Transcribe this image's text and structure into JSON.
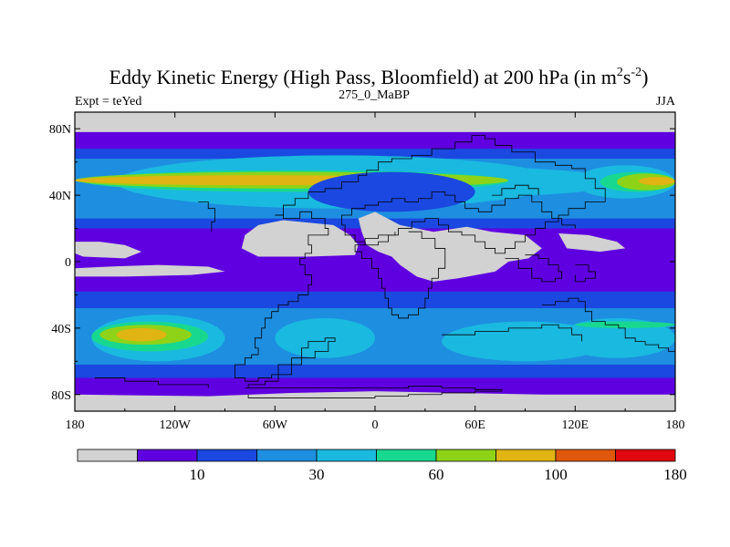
{
  "chart_data": {
    "type": "heatmap",
    "title": "Eddy Kinetic Energy (High Pass, Bloomfield) at 200 hPa (in m",
    "title_unit_sup1": "2",
    "title_unit_s": "s",
    "title_unit_sup2": "-2",
    "title_close": ")",
    "left_label": "Expt = teYed",
    "center_label": "275_0_MaBP",
    "right_label": "JJA",
    "x_ticks": [
      {
        "value": -180,
        "label": "180"
      },
      {
        "value": -120,
        "label": "120W"
      },
      {
        "value": -60,
        "label": "60W"
      },
      {
        "value": 0,
        "label": "0"
      },
      {
        "value": 60,
        "label": "60E"
      },
      {
        "value": 120,
        "label": "120E"
      },
      {
        "value": 180,
        "label": "180"
      }
    ],
    "y_ticks": [
      {
        "value": 80,
        "label": "80N"
      },
      {
        "value": 40,
        "label": "40N"
      },
      {
        "value": 0,
        "label": "0"
      },
      {
        "value": -40,
        "label": "40S"
      },
      {
        "value": -80,
        "label": "80S"
      }
    ],
    "xlim": [
      -180,
      180
    ],
    "ylim": [
      -90,
      90
    ],
    "levels": [
      10,
      20,
      30,
      40,
      60,
      80,
      100,
      120,
      150,
      180
    ],
    "colors": [
      "#d2d2d2",
      "#5f00e0",
      "#1a48e0",
      "#1e8ee0",
      "#1ab9e0",
      "#18d890",
      "#8ed318",
      "#e0b412",
      "#e0580e",
      "#e0080e"
    ],
    "colorbar_labels": [
      {
        "after_box": 2,
        "label": "10"
      },
      {
        "after_box": 4,
        "label": "30"
      },
      {
        "after_box": 6,
        "label": "60"
      },
      {
        "after_box": 8,
        "label": "100"
      },
      {
        "after_box": 10,
        "label": "180"
      }
    ],
    "bands": [
      {
        "lat_top": 90,
        "lat_bot": 78,
        "level": 0
      },
      {
        "lat_top": 78,
        "lat_bot": 68,
        "level": 1
      },
      {
        "lat_top": 68,
        "lat_bot": 62,
        "level": 2
      },
      {
        "lat_top": 62,
        "lat_bot": 26,
        "level": 3
      },
      {
        "lat_top": 26,
        "lat_bot": 20,
        "level": 2
      },
      {
        "lat_top": 20,
        "lat_bot": -18,
        "level": 1
      },
      {
        "lat_top": -18,
        "lat_bot": -28,
        "level": 2
      },
      {
        "lat_top": -28,
        "lat_bot": -62,
        "level": 3
      },
      {
        "lat_top": -62,
        "lat_bot": -70,
        "level": 2
      },
      {
        "lat_top": -70,
        "lat_bot": -82,
        "level": 1
      },
      {
        "lat_top": -82,
        "lat_bot": -90,
        "level": 0
      }
    ],
    "blobs": [
      {
        "lon": [
          -120,
          150
        ],
        "lat": [
          58,
          38
        ],
        "level": 4
      },
      {
        "lon": [
          -155,
          110
        ],
        "lat": [
          64,
          32
        ],
        "level": 4
      },
      {
        "lon": [
          -175,
          80
        ],
        "lat": [
          55,
          42
        ],
        "level": 5
      },
      {
        "lon": [
          -180,
          80
        ],
        "lat": [
          54,
          44
        ],
        "level": 6
      },
      {
        "lon": [
          -180,
          40
        ],
        "lat": [
          52,
          46
        ],
        "level": 7
      },
      {
        "lon": [
          120,
          180
        ],
        "lat": [
          58,
          38
        ],
        "level": 4
      },
      {
        "lon": [
          135,
          180
        ],
        "lat": [
          54,
          42
        ],
        "level": 5
      },
      {
        "lon": [
          145,
          180
        ],
        "lat": [
          53,
          43
        ],
        "level": 6
      },
      {
        "lon": [
          158,
          180
        ],
        "lat": [
          51,
          46
        ],
        "level": 7
      },
      {
        "lon": [
          -170,
          -90
        ],
        "lat": [
          -32,
          -60
        ],
        "level": 4
      },
      {
        "lon": [
          -170,
          -100
        ],
        "lat": [
          -36,
          -54
        ],
        "level": 5
      },
      {
        "lon": [
          -165,
          -110
        ],
        "lat": [
          -38,
          -50
        ],
        "level": 6
      },
      {
        "lon": [
          -155,
          -125
        ],
        "lat": [
          -40,
          -48
        ],
        "level": 7
      },
      {
        "lon": [
          -60,
          0
        ],
        "lat": [
          -34,
          -58
        ],
        "level": 4
      },
      {
        "lon": [
          40,
          140
        ],
        "lat": [
          -36,
          -60
        ],
        "level": 4
      },
      {
        "lon": [
          110,
          180
        ],
        "lat": [
          -34,
          -58
        ],
        "level": 4
      },
      {
        "lon": [
          -40,
          60
        ],
        "lat": [
          54,
          30
        ],
        "level": 2
      },
      {
        "lon": [
          120,
          180
        ],
        "lat": [
          -36,
          -40
        ],
        "level": 5
      }
    ],
    "low_regions": [
      [
        [
          -180,
          12
        ],
        [
          -165,
          12
        ],
        [
          -150,
          10
        ],
        [
          -140,
          6
        ],
        [
          -150,
          2
        ],
        [
          -175,
          3
        ],
        [
          -180,
          5
        ]
      ],
      [
        [
          -180,
          -4
        ],
        [
          -160,
          -3
        ],
        [
          -130,
          -2
        ],
        [
          -100,
          -3
        ],
        [
          -90,
          -6
        ],
        [
          -110,
          -8
        ],
        [
          -150,
          -9
        ],
        [
          -180,
          -9
        ]
      ],
      [
        [
          -70,
          22
        ],
        [
          -55,
          25
        ],
        [
          -25,
          22
        ],
        [
          -15,
          16
        ],
        [
          -10,
          10
        ],
        [
          -12,
          4
        ],
        [
          -40,
          3
        ],
        [
          -70,
          3
        ],
        [
          -80,
          8
        ],
        [
          -78,
          16
        ]
      ],
      [
        [
          -10,
          26
        ],
        [
          0,
          30
        ],
        [
          15,
          22
        ],
        [
          35,
          18
        ],
        [
          55,
          21
        ],
        [
          70,
          18
        ],
        [
          90,
          16
        ],
        [
          100,
          8
        ],
        [
          92,
          2
        ],
        [
          80,
          0
        ],
        [
          72,
          -6
        ],
        [
          50,
          -10
        ],
        [
          35,
          -12
        ],
        [
          25,
          -9
        ],
        [
          15,
          -2
        ],
        [
          10,
          3
        ],
        [
          2,
          6
        ],
        [
          -5,
          10
        ],
        [
          -8,
          18
        ]
      ],
      [
        [
          110,
          17
        ],
        [
          128,
          16
        ],
        [
          145,
          12
        ],
        [
          150,
          8
        ],
        [
          135,
          6
        ],
        [
          115,
          8
        ]
      ],
      [
        [
          -180,
          -80
        ],
        [
          -100,
          -81
        ],
        [
          -50,
          -79
        ],
        [
          0,
          -78
        ],
        [
          50,
          -79
        ],
        [
          100,
          -80
        ],
        [
          150,
          -80
        ],
        [
          180,
          -80
        ],
        [
          180,
          -90
        ],
        [
          -180,
          -90
        ]
      ]
    ],
    "coastlines": [
      [
        [
          -60,
          28
        ],
        [
          -55,
          26
        ],
        [
          -45,
          30
        ],
        [
          -38,
          26
        ],
        [
          -30,
          20
        ],
        [
          -28,
          16
        ],
        [
          -40,
          10
        ],
        [
          -38,
          5
        ],
        [
          -42,
          2
        ],
        [
          -45,
          -2
        ],
        [
          -42,
          -8
        ],
        [
          -38,
          -14
        ],
        [
          -40,
          -20
        ],
        [
          -46,
          -24
        ],
        [
          -52,
          -26
        ],
        [
          -58,
          -30
        ],
        [
          -62,
          -34
        ],
        [
          -66,
          -40
        ],
        [
          -68,
          -46
        ],
        [
          -72,
          -52
        ],
        [
          -70,
          -56
        ],
        [
          -74,
          -58
        ],
        [
          -78,
          -62
        ],
        [
          -84,
          -66
        ],
        [
          -84,
          -70
        ],
        [
          -78,
          -72
        ],
        [
          -70,
          -70
        ],
        [
          -62,
          -68
        ],
        [
          -58,
          -62
        ],
        [
          -50,
          -58
        ],
        [
          -44,
          -52
        ],
        [
          -40,
          -48
        ],
        [
          -30,
          -46
        ],
        [
          -24,
          -48
        ],
        [
          -28,
          -54
        ],
        [
          -36,
          -58
        ],
        [
          -44,
          -62
        ],
        [
          -50,
          -68
        ],
        [
          -58,
          -72
        ],
        [
          -66,
          -74
        ],
        [
          -76,
          -76
        ]
      ],
      [
        [
          -78,
          -76
        ],
        [
          -60,
          -76
        ],
        [
          -40,
          -76
        ],
        [
          -20,
          -76
        ],
        [
          0,
          -76
        ],
        [
          20,
          -75
        ],
        [
          40,
          -76
        ],
        [
          60,
          -77
        ],
        [
          76,
          -78
        ],
        [
          60,
          -79
        ],
        [
          40,
          -80
        ],
        [
          20,
          -81
        ],
        [
          0,
          -82
        ],
        [
          -20,
          -82
        ],
        [
          -40,
          -82
        ],
        [
          -60,
          -82
        ],
        [
          -76,
          -80
        ]
      ],
      [
        [
          -60,
          28
        ],
        [
          -55,
          34
        ],
        [
          -48,
          38
        ],
        [
          -40,
          42
        ],
        [
          -30,
          44
        ],
        [
          -20,
          48
        ],
        [
          -10,
          52
        ],
        [
          -5,
          55
        ],
        [
          2,
          60
        ],
        [
          10,
          62
        ],
        [
          22,
          64
        ],
        [
          34,
          68
        ],
        [
          48,
          72
        ],
        [
          58,
          76
        ],
        [
          66,
          74
        ],
        [
          72,
          70
        ],
        [
          82,
          66
        ],
        [
          96,
          60
        ],
        [
          108,
          58
        ],
        [
          118,
          56
        ],
        [
          126,
          50
        ],
        [
          132,
          44
        ],
        [
          138,
          36
        ]
      ],
      [
        [
          138,
          36
        ],
        [
          126,
          32
        ],
        [
          116,
          28
        ],
        [
          110,
          24
        ],
        [
          102,
          20
        ],
        [
          96,
          16
        ],
        [
          90,
          12
        ],
        [
          84,
          8
        ],
        [
          78,
          5
        ],
        [
          72,
          8
        ],
        [
          66,
          12
        ],
        [
          60,
          16
        ],
        [
          52,
          18
        ],
        [
          44,
          22
        ],
        [
          38,
          26
        ],
        [
          30,
          24
        ],
        [
          22,
          20
        ],
        [
          14,
          16
        ],
        [
          8,
          12
        ],
        [
          2,
          10
        ],
        [
          -6,
          12
        ],
        [
          -12,
          16
        ],
        [
          -18,
          22
        ],
        [
          -20,
          28
        ],
        [
          -14,
          32
        ],
        [
          -6,
          34
        ],
        [
          2,
          36
        ],
        [
          10,
          38
        ],
        [
          18,
          36
        ],
        [
          26,
          38
        ],
        [
          34,
          42
        ],
        [
          42,
          40
        ],
        [
          48,
          36
        ],
        [
          54,
          32
        ],
        [
          62,
          30
        ],
        [
          70,
          34
        ],
        [
          78,
          38
        ],
        [
          86,
          40
        ],
        [
          94,
          36
        ],
        [
          100,
          30
        ],
        [
          106,
          26
        ],
        [
          112,
          22
        ],
        [
          120,
          20
        ]
      ],
      [
        [
          20,
          18
        ],
        [
          28,
          14
        ],
        [
          36,
          8
        ],
        [
          42,
          2
        ],
        [
          42,
          -4
        ],
        [
          38,
          -10
        ],
        [
          34,
          -16
        ],
        [
          32,
          -22
        ],
        [
          30,
          -28
        ],
        [
          26,
          -32
        ],
        [
          20,
          -34
        ],
        [
          14,
          -32
        ],
        [
          10,
          -28
        ],
        [
          8,
          -22
        ],
        [
          6,
          -16
        ],
        [
          4,
          -10
        ],
        [
          2,
          -4
        ],
        [
          -2,
          2
        ],
        [
          -8,
          6
        ],
        [
          -12,
          10
        ],
        [
          -6,
          14
        ],
        [
          2,
          16
        ],
        [
          12,
          18
        ]
      ],
      [
        [
          78,
          2
        ],
        [
          86,
          -4
        ],
        [
          94,
          -10
        ],
        [
          100,
          -12
        ],
        [
          108,
          -10
        ],
        [
          112,
          -6
        ],
        [
          110,
          -2
        ],
        [
          104,
          2
        ],
        [
          98,
          4
        ],
        [
          90,
          4
        ]
      ],
      [
        [
          100,
          -26
        ],
        [
          108,
          -24
        ],
        [
          116,
          -22
        ],
        [
          122,
          -24
        ],
        [
          126,
          -30
        ],
        [
          130,
          -36
        ],
        [
          138,
          -38
        ],
        [
          146,
          -40
        ],
        [
          150,
          -42
        ],
        [
          150,
          -46
        ],
        [
          156,
          -48
        ],
        [
          162,
          -50
        ],
        [
          170,
          -52
        ],
        [
          176,
          -54
        ],
        [
          180,
          -56
        ]
      ],
      [
        [
          40,
          -44
        ],
        [
          60,
          -42
        ],
        [
          80,
          -40
        ],
        [
          100,
          -38
        ],
        [
          110,
          -40
        ],
        [
          118,
          -44
        ],
        [
          124,
          -48
        ]
      ],
      [
        [
          -168,
          -70
        ],
        [
          -150,
          -72
        ],
        [
          -130,
          -74
        ],
        [
          -110,
          -74
        ],
        [
          -100,
          -76
        ]
      ],
      [
        [
          -106,
          36
        ],
        [
          -100,
          32
        ],
        [
          -96,
          24
        ],
        [
          -98,
          18
        ]
      ],
      [
        [
          70,
          40
        ],
        [
          76,
          44
        ],
        [
          84,
          46
        ],
        [
          92,
          44
        ],
        [
          98,
          40
        ]
      ],
      [
        [
          120,
          -2
        ],
        [
          128,
          -6
        ],
        [
          132,
          -10
        ],
        [
          126,
          -12
        ],
        [
          120,
          -8
        ]
      ]
    ]
  }
}
